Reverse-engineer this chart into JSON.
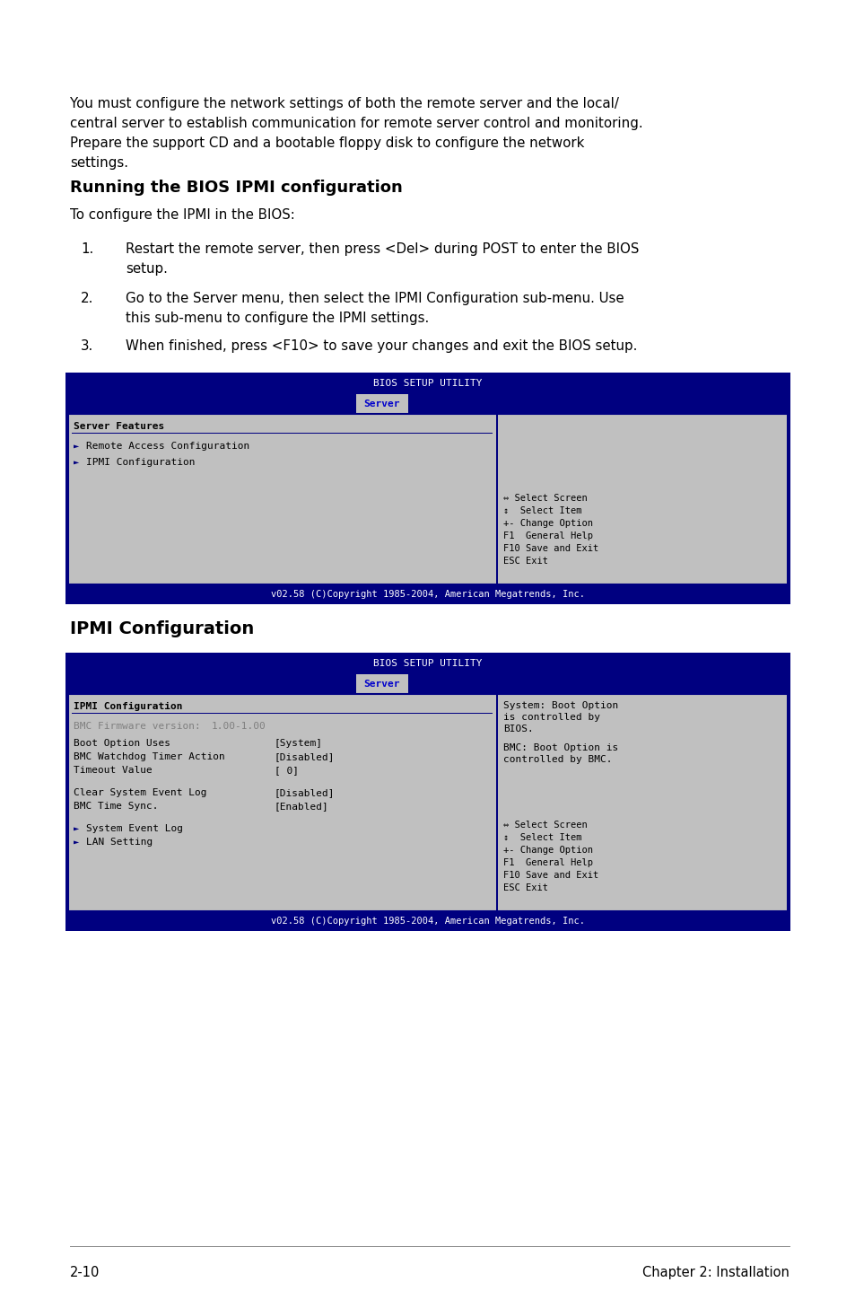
{
  "bg_color": "#ffffff",
  "body_text_color": "#000000",
  "dark_blue": "#000080",
  "bios_bg": "#c0c0c0",
  "bios_header_bg": "#000080",
  "bios_header_text": "#ffffff",
  "bios_tab_selected_bg": "#c0c0c0",
  "bios_tab_selected_text": "#0000cc",
  "bios_border_color": "#000080",
  "bios_text_color": "#000000",
  "bios_arrow_color": "#000080",
  "bios_gray_text": "#808080",
  "intro_text_line1": "You must configure the network settings of both the remote server and the local/",
  "intro_text_line2": "central server to establish communication for remote server control and monitoring.",
  "intro_text_line3": "Prepare the support CD and a bootable floppy disk to configure the network",
  "intro_text_line4": "settings.",
  "section1_title": "Running the BIOS IPMI configuration",
  "section1_sub": "To configure the IPMI in the BIOS:",
  "step1_num": "1.",
  "step1_line1": "Restart the remote server, then press <Del> during POST to enter the BIOS",
  "step1_line2": "setup.",
  "step2_num": "2.",
  "step2_line1": "Go to the Server menu, then select the IPMI Configuration sub-menu. Use",
  "step2_line2": "this sub-menu to configure the IPMI settings.",
  "step3_num": "3.",
  "step3_line1": "When finished, press <F10> to save your changes and exit the BIOS setup.",
  "bios1_title": "BIOS SETUP UTILITY",
  "bios1_tab": "Server",
  "bios1_section": "Server Features",
  "bios1_item1": "Remote Access Configuration",
  "bios1_item2": "IPMI Configuration",
  "bios1_help1": "⇔ Select Screen",
  "bios1_help2": "↕  Select Item",
  "bios1_help3": "+- Change Option",
  "bios1_help4": "F1  General Help",
  "bios1_help5": "F10 Save and Exit",
  "bios1_help6": "ESC Exit",
  "bios1_footer": "v02.58 (C)Copyright 1985-2004, American Megatrends, Inc.",
  "section2_title": "IPMI Configuration",
  "bios2_title": "BIOS SETUP UTILITY",
  "bios2_tab": "Server",
  "bios2_section": "IPMI Configuration",
  "bios2_firmware_label": "BMC Firmware version:",
  "bios2_firmware_val": "1.00-1.00",
  "bios2_item1a": "Boot Option Uses",
  "bios2_item1b": "[System]",
  "bios2_item2a": "BMC Watchdog Timer Action",
  "bios2_item2b": "[Disabled]",
  "bios2_item3a": "Timeout Value",
  "bios2_item3b": "[ 0]",
  "bios2_item4a": "Clear System Event Log",
  "bios2_item4b": "[Disabled]",
  "bios2_item5a": "BMC Time Sync.",
  "bios2_item5b": "[Enabled]",
  "bios2_sub1": "System Event Log",
  "bios2_sub2": "LAN Setting",
  "bios2_right1_line1": "System: Boot Option",
  "bios2_right1_line2": "is controlled by",
  "bios2_right1_line3": "BIOS.",
  "bios2_right2_line1": "BMC: Boot Option is",
  "bios2_right2_line2": "controlled by BMC.",
  "bios2_help1": "⇔ Select Screen",
  "bios2_help2": "↕  Select Item",
  "bios2_help3": "+- Change Option",
  "bios2_help4": "F1  General Help",
  "bios2_help5": "F10 Save and Exit",
  "bios2_help6": "ESC Exit",
  "bios2_footer": "v02.58 (C)Copyright 1985-2004, American Megatrends, Inc.",
  "footer_left": "2-10",
  "footer_right": "Chapter 2: Installation",
  "fig_width": 9.54,
  "fig_height": 14.38,
  "dpi": 100
}
